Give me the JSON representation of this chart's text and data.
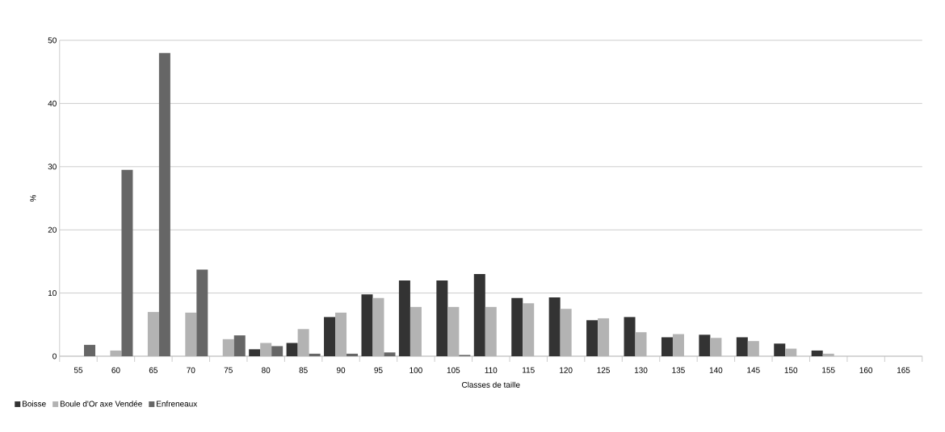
{
  "chart_data": {
    "type": "bar",
    "xlabel": "Classes de taille",
    "ylabel": "%",
    "categories": [
      "55",
      "60",
      "65",
      "70",
      "75",
      "80",
      "85",
      "90",
      "95",
      "100",
      "105",
      "110",
      "115",
      "120",
      "125",
      "130",
      "135",
      "140",
      "145",
      "150",
      "155",
      "160",
      "165"
    ],
    "series": [
      {
        "name": "Boisse",
        "color": "#333333",
        "values": [
          null,
          null,
          null,
          null,
          null,
          1.1,
          2.1,
          6.2,
          9.8,
          12.0,
          12.0,
          13.0,
          9.2,
          9.3,
          5.7,
          6.2,
          3.0,
          3.4,
          3.0,
          2.0,
          0.9,
          null,
          null
        ]
      },
      {
        "name": "Boule d'Or axe Vendée",
        "color": "#b3b3b3",
        "values": [
          null,
          0.9,
          7.0,
          6.9,
          2.7,
          2.1,
          4.3,
          6.9,
          9.2,
          7.8,
          7.8,
          7.8,
          8.4,
          7.5,
          6.0,
          3.8,
          3.5,
          2.9,
          2.4,
          1.2,
          0.4,
          null,
          null
        ]
      },
      {
        "name": "Enfreneaux",
        "color": "#666666",
        "values": [
          1.8,
          29.5,
          48.0,
          13.7,
          3.3,
          1.6,
          0.4,
          0.4,
          0.6,
          null,
          0.2,
          null,
          null,
          null,
          null,
          null,
          null,
          null,
          null,
          null,
          null,
          null,
          null
        ]
      }
    ],
    "ylim": [
      0,
      50
    ],
    "yticks": [
      0,
      10,
      20,
      30,
      40,
      50
    ],
    "grid": "y",
    "legend": "bottom left"
  }
}
